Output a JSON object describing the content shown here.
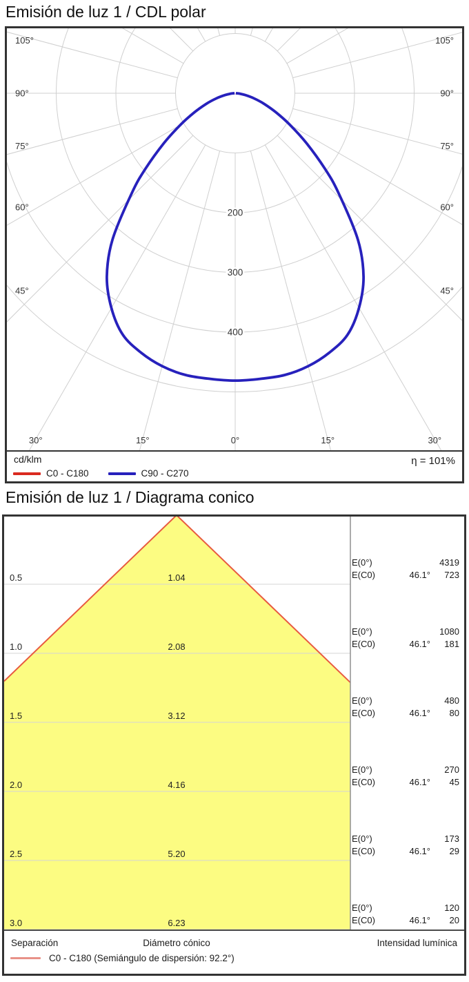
{
  "chart_data": [
    {
      "type": "polar",
      "title": "Emisión de luz 1 / CDL polar",
      "units": "cd/klm",
      "efficiency": "η = 101%",
      "grid": {
        "color": "#cfcfcf",
        "rings_cd_per_klm": [
          100,
          200,
          300,
          400,
          500
        ],
        "ring_labels": [
          200,
          300,
          400
        ],
        "angle_step_deg": 15,
        "max_angle_deg": 180,
        "angle_labels_deg": [
          0,
          15,
          30,
          45,
          60,
          75,
          90,
          105
        ]
      },
      "series": [
        {
          "name": "C0 - C180",
          "color": "#da2a20",
          "samples_deg_cd_per_klm": [
            [
              0,
              481
            ],
            [
              5,
              480
            ],
            [
              10,
              479
            ],
            [
              15,
              473
            ],
            [
              20,
              462
            ],
            [
              25,
              446
            ],
            [
              30,
              415
            ],
            [
              35,
              375
            ],
            [
              40,
              320
            ],
            [
              46.1,
              240
            ],
            [
              50,
              196
            ],
            [
              55,
              146
            ],
            [
              60,
              106
            ],
            [
              65,
              75
            ],
            [
              70,
              51
            ],
            [
              75,
              32
            ],
            [
              80,
              17
            ],
            [
              85,
              7
            ],
            [
              90,
              1
            ]
          ]
        },
        {
          "name": "C90 - C270",
          "color": "#2721bc",
          "samples_deg_cd_per_klm": [
            [
              0,
              481
            ],
            [
              5,
              480
            ],
            [
              10,
              479
            ],
            [
              15,
              473
            ],
            [
              20,
              462
            ],
            [
              25,
              446
            ],
            [
              30,
              415
            ],
            [
              35,
              375
            ],
            [
              40,
              320
            ],
            [
              46.1,
              240
            ],
            [
              50,
              196
            ],
            [
              55,
              146
            ],
            [
              60,
              106
            ],
            [
              65,
              75
            ],
            [
              70,
              51
            ],
            [
              75,
              32
            ],
            [
              80,
              17
            ],
            [
              85,
              7
            ],
            [
              90,
              1
            ]
          ]
        }
      ]
    },
    {
      "type": "cone",
      "title": "Emisión de luz 1 / Diagrama conico",
      "beam": {
        "half_angle_label": "46.1°",
        "legend": "C0 - C180 (Semiángulo de dispersión: 92.2°)",
        "legend_color": "#e89188",
        "cone_fill": "#fcfc82",
        "cone_edge": "#e85a40"
      },
      "labels": {
        "e0": "E(0°)",
        "ec0": "E(C0)",
        "separation": "Separación",
        "diameter": "Diámetro cónico",
        "intensity": "Intensidad lumínica"
      },
      "rows": [
        {
          "separation": "0.5",
          "diameter": "1.04",
          "e0": "4319",
          "angle": "46.1°",
          "ec0": "723"
        },
        {
          "separation": "1.0",
          "diameter": "2.08",
          "e0": "1080",
          "angle": "46.1°",
          "ec0": "181"
        },
        {
          "separation": "1.5",
          "diameter": "3.12",
          "e0": "480",
          "angle": "46.1°",
          "ec0": "80"
        },
        {
          "separation": "2.0",
          "diameter": "4.16",
          "e0": "270",
          "angle": "46.1°",
          "ec0": "45"
        },
        {
          "separation": "2.5",
          "diameter": "5.20",
          "e0": "173",
          "angle": "46.1°",
          "ec0": "29"
        },
        {
          "separation": "3.0",
          "diameter": "6.23",
          "e0": "120",
          "angle": "46.1°",
          "ec0": "20"
        }
      ]
    }
  ]
}
